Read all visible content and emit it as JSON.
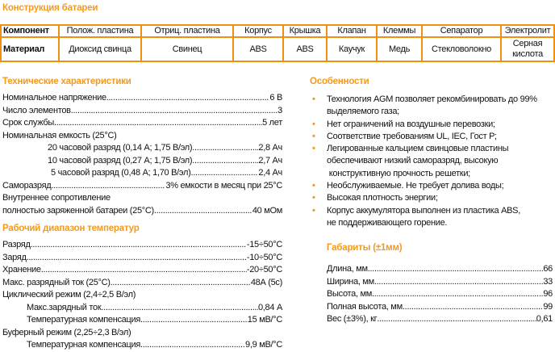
{
  "construction": {
    "title": "Конструкция батареи",
    "header": [
      "Компонент",
      "Полож. пластина",
      "Отриц. пластина",
      "Корпус",
      "Крышка",
      "Клапан",
      "Клеммы",
      "Сепаратор",
      "Электролит"
    ],
    "material": [
      "Материал",
      "Диоксид свинца",
      "Свинец",
      "ABS",
      "ABS",
      "Каучук",
      "Медь",
      "Стекловолокно",
      "Серная кислота"
    ]
  },
  "tech": {
    "title": "Технические характеристики",
    "rows": [
      {
        "label": "Номинальное напряжение",
        "value": "6 В"
      },
      {
        "label": "Число элементов",
        "value": "3"
      },
      {
        "label": "Срок службы",
        "value": "5 лет"
      },
      {
        "label": "Номинальная емкость (25°C)",
        "value": ""
      },
      {
        "label": "20  часовой разряд  (0,14 А; 1,75 В/эл)",
        "value": "2,8 Ач"
      },
      {
        "label": "10   часовой разряд  (0,27 А; 1,75 В/эл)",
        "value": "2,7 Ач"
      },
      {
        "label": "5   часовой разряд  (0,48 А; 1,70 В/эл)",
        "value": "2,4 Ач"
      },
      {
        "label": "Саморазряд",
        "value": "3% емкости в месяц при 25°C"
      },
      {
        "label": "Внутреннее сопротивление",
        "value": ""
      },
      {
        "label": "полностью заряженной батареи (25°C)",
        "value": "40 мОм"
      }
    ]
  },
  "temp": {
    "title": "Рабочий диапазон температур",
    "rows": [
      {
        "label": "Разряд",
        "value": " -15÷50°C"
      },
      {
        "label": "Заряд",
        "value": " -10÷50°C"
      },
      {
        "label": "Хранение",
        "value": " -20÷50°C"
      },
      {
        "label": "Макс. разрядный ток (25°C)",
        "value": "48А (5с)"
      },
      {
        "label": "Циклический режим (2,4÷2,5 В/эл)",
        "value": ""
      },
      {
        "label": "Макс.зарядный ток",
        "value": "0,84 А"
      },
      {
        "label": "Температурная компенсация",
        "value": "15 мВ/°C"
      },
      {
        "label": "Буферный режим (2,25÷2,3 В/эл)",
        "value": ""
      },
      {
        "label": "Температурная компенсация",
        "value": "9,9 мВ/°C"
      }
    ]
  },
  "features": {
    "title": "Особенности",
    "bullet_color": "#f39a1e",
    "items": [
      [
        "Технология AGM позволяет рекомбинировать до 99%",
        "выделяемого газа;"
      ],
      [
        "Нет ограничений на воздушные перевозки;"
      ],
      [
        "Соответствие требованиям UL, IEC, Гост Р;"
      ],
      [
        "Легированные кальцием свинцовые пластины",
        "обеспечивают низкий саморазряд, высокую",
        " конструктивную прочность решетки;"
      ],
      [
        "Необслуживаемые. Не требует долива воды;"
      ],
      [
        "Высокая плотность энергии;"
      ],
      [
        "Корпус аккумулятора выполнен из пластика ABS,",
        "не поддерживающего горение."
      ]
    ]
  },
  "dims": {
    "title": "Габариты (±1мм)",
    "rows": [
      {
        "label": "Длина, мм",
        "value": "66"
      },
      {
        "label": "Ширина, мм",
        "value": "33"
      },
      {
        "label": "Высота, мм",
        "value": "96"
      },
      {
        "label": "Полная высота, мм",
        "value": "99"
      },
      {
        "label": "Вес (±3%), кг",
        "value": "0,61"
      }
    ]
  }
}
